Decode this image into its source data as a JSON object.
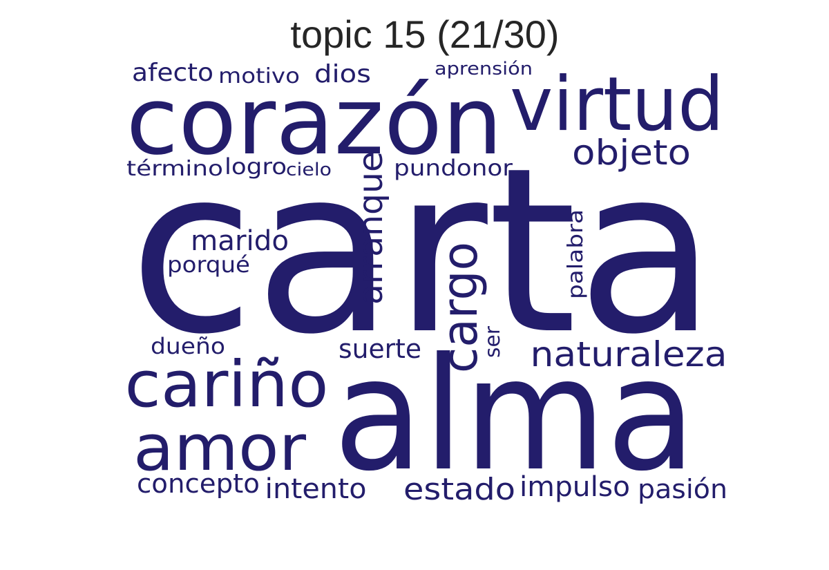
{
  "title": "topic 15 (21/30)",
  "word_color": "#231d6b",
  "words": [
    {
      "text": "carta"
    },
    {
      "text": "alma"
    },
    {
      "text": "corazón"
    },
    {
      "text": "virtud"
    },
    {
      "text": "cariño"
    },
    {
      "text": "amor"
    },
    {
      "text": "cargo"
    },
    {
      "text": "arranque"
    },
    {
      "text": "naturaleza"
    },
    {
      "text": "objeto"
    },
    {
      "text": "marido"
    },
    {
      "text": "estado"
    },
    {
      "text": "impulso"
    },
    {
      "text": "intento"
    },
    {
      "text": "concepto"
    },
    {
      "text": "pasión"
    },
    {
      "text": "suerte"
    },
    {
      "text": "pundonor"
    },
    {
      "text": "afecto"
    },
    {
      "text": "dios"
    },
    {
      "text": "motivo"
    },
    {
      "text": "término"
    },
    {
      "text": "logro"
    },
    {
      "text": "cielo"
    },
    {
      "text": "porqué"
    },
    {
      "text": "dueño"
    },
    {
      "text": "palabra"
    },
    {
      "text": "ser"
    },
    {
      "text": "aprensión"
    }
  ]
}
